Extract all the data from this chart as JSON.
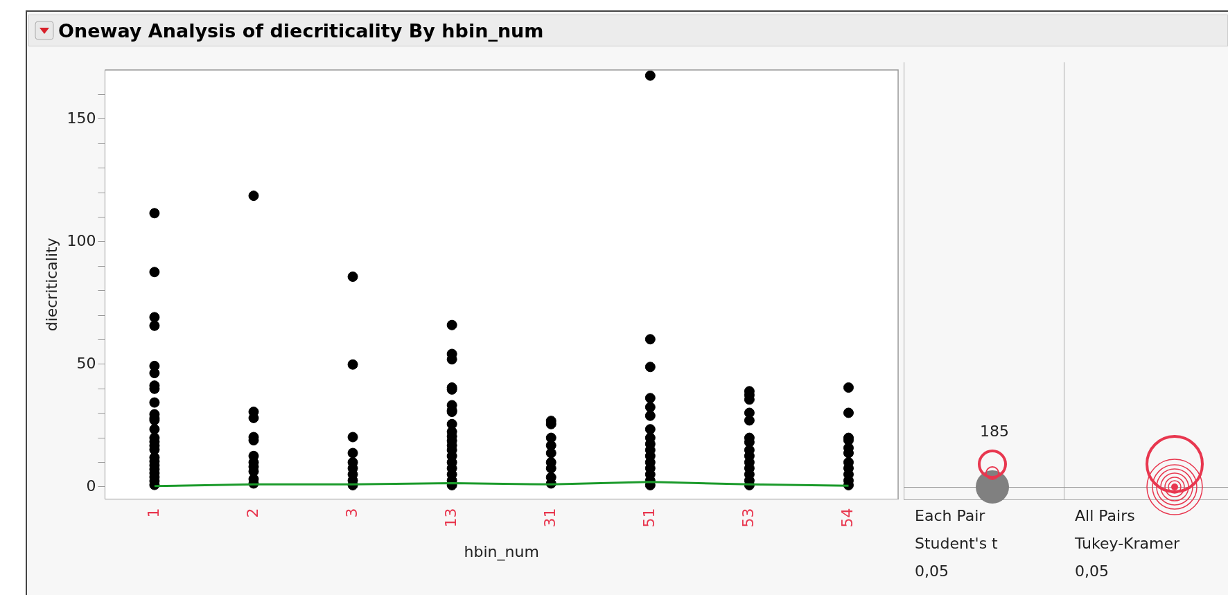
{
  "chart_data": {
    "type": "scatter",
    "title": "Oneway Analysis of diecriticality By hbin_num",
    "xlabel": "hbin_num",
    "ylabel": "diecriticality",
    "categories": [
      "1",
      "2",
      "3",
      "13",
      "31",
      "51",
      "53",
      "54"
    ],
    "ylim": [
      -5,
      170
    ],
    "yticks": [
      0,
      {
        "value": 10,
        "label": null
      },
      {
        "value": 20,
        "label": null
      },
      {
        "value": 30,
        "label": null
      },
      {
        "value": 40,
        "label": null
      },
      50,
      {
        "value": 60,
        "label": null
      },
      {
        "value": 70,
        "label": null
      },
      {
        "value": 80,
        "label": null
      },
      {
        "value": 90,
        "label": null
      },
      100,
      {
        "value": 110,
        "label": null
      },
      {
        "value": 120,
        "label": null
      },
      {
        "value": 130,
        "label": null
      },
      {
        "value": 140,
        "label": null
      },
      150,
      {
        "value": 160,
        "label": null
      }
    ],
    "grid": false,
    "legend": false,
    "marker": "circle",
    "series": [
      {
        "color": "#000000",
        "x": [
          "1",
          "1",
          "1",
          "1",
          "1",
          "1",
          "1",
          "1",
          "1",
          "1",
          "1",
          "1",
          "1",
          "1",
          "1",
          "1",
          "1",
          "1",
          "1",
          "1",
          "1",
          "1",
          "1",
          "1",
          "1",
          "2",
          "2",
          "2",
          "2",
          "2",
          "2",
          "2",
          "2",
          "2",
          "2",
          "2",
          "3",
          "3",
          "3",
          "3",
          "3",
          "3",
          "3",
          "3",
          "3",
          "13",
          "13",
          "13",
          "13",
          "13",
          "13",
          "13",
          "13",
          "13",
          "13",
          "13",
          "13",
          "13",
          "13",
          "13",
          "13",
          "13",
          "13",
          "13",
          "13",
          "31",
          "31",
          "31",
          "31",
          "31",
          "31",
          "31",
          "31",
          "31",
          "51",
          "51",
          "51",
          "51",
          "51",
          "51",
          "51",
          "51",
          "51",
          "51",
          "51",
          "51",
          "51",
          "51",
          "51",
          "51",
          "53",
          "53",
          "53",
          "53",
          "53",
          "53",
          "53",
          "53",
          "53",
          "53",
          "53",
          "53",
          "53",
          "53",
          "54",
          "54",
          "54",
          "54",
          "54",
          "54",
          "54",
          "54",
          "54",
          "54",
          "54"
        ],
        "values": [
          111.6,
          87.6,
          69.2,
          65.7,
          49.3,
          46.4,
          41.3,
          40,
          34.4,
          29.6,
          28,
          27.2,
          23.5,
          20,
          18.4,
          16.8,
          15.2,
          12,
          10.4,
          8.8,
          7.2,
          5.6,
          4,
          2.4,
          0.8,
          118.7,
          30.6,
          28.1,
          20.3,
          19,
          12.6,
          10,
          8.2,
          6.3,
          3.2,
          1.4,
          85.7,
          49.9,
          20.3,
          13.8,
          10,
          7.6,
          5.1,
          2.6,
          0.7,
          66,
          54.2,
          52,
          40.5,
          39.7,
          33.3,
          31.2,
          30.6,
          25.6,
          22.5,
          20.6,
          18.8,
          16.9,
          15,
          12.6,
          10,
          7.6,
          5.1,
          2.6,
          0.7,
          26.9,
          25.6,
          20,
          16.9,
          13.8,
          10,
          7.6,
          3.9,
          1.4,
          167.7,
          60.2,
          48.9,
          36.2,
          32.5,
          29,
          23.5,
          20,
          17.5,
          15,
          12.6,
          10,
          7.6,
          5.1,
          2.6,
          0.7,
          39,
          37.4,
          35.6,
          30.2,
          27.1,
          20,
          18.2,
          15,
          12.6,
          10,
          7.6,
          5.1,
          2.6,
          0.7,
          40.5,
          30.2,
          20,
          19,
          15.9,
          13.8,
          10,
          7.6,
          5.1,
          2.6,
          0.7
        ]
      },
      {
        "type": "line",
        "color": "#1a9a2a",
        "marker": "none",
        "values": [
          0.3,
          1,
          1,
          1.5,
          1,
          2,
          1,
          0.5
        ]
      }
    ],
    "annotations": [
      "185",
      "Each Pair\nStudent's t\n0,05",
      "All Pairs\nTukey-Kramer\n0,05"
    ]
  }
}
